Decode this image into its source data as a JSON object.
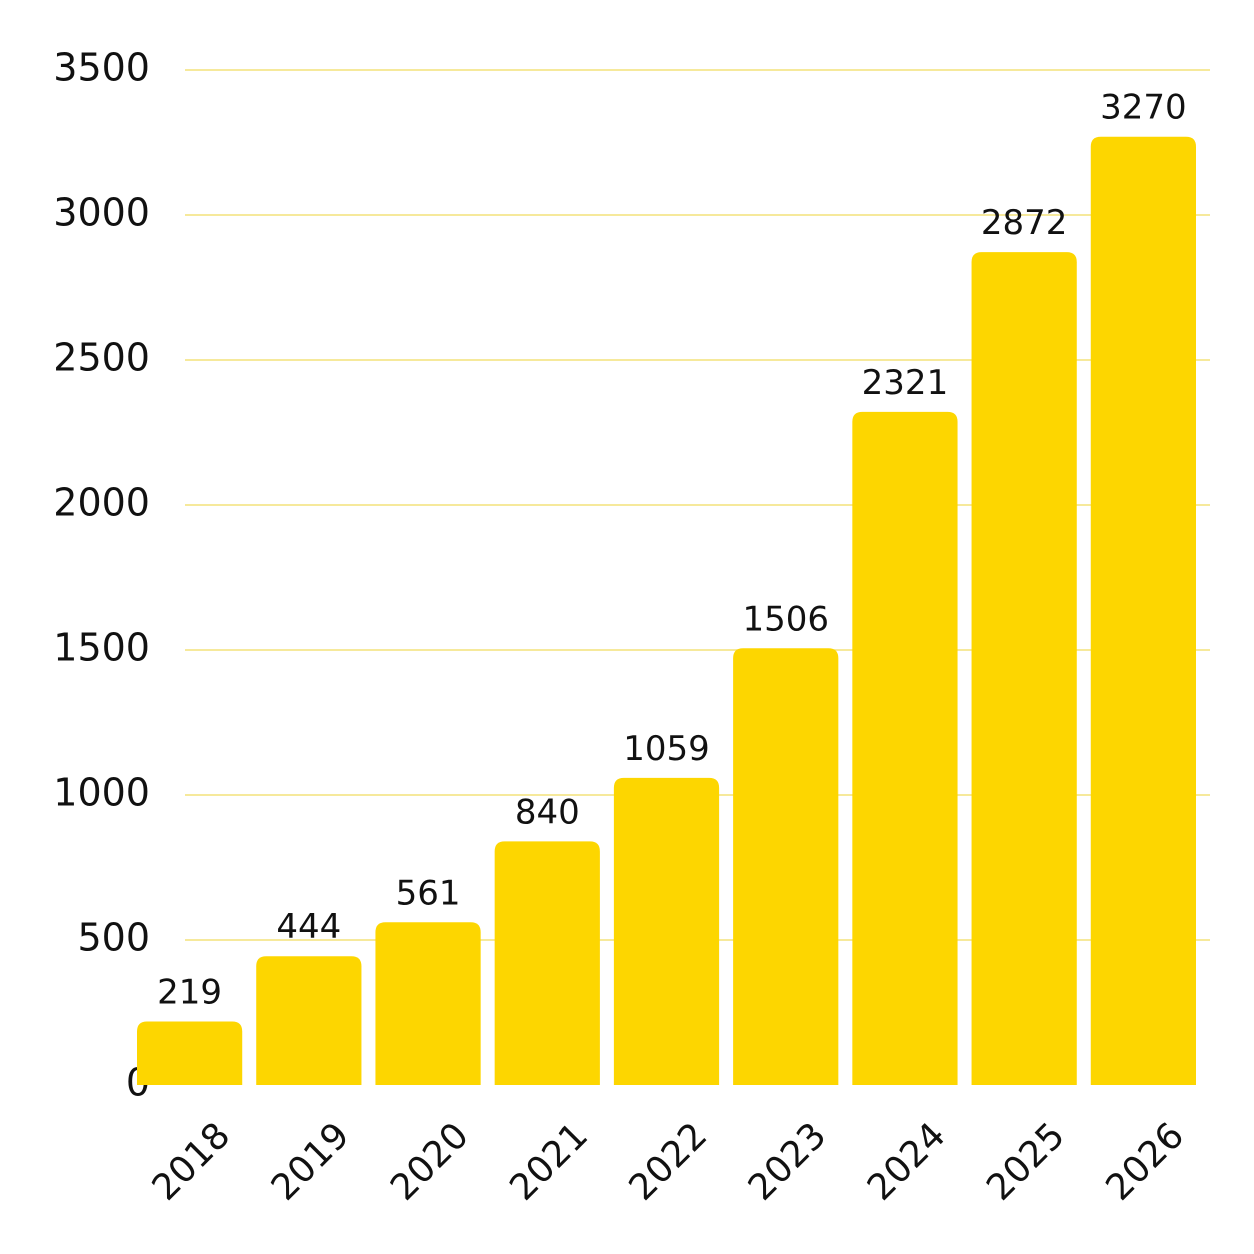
{
  "colors": {
    "bar": "#FDD600",
    "grid": "#F4E27A",
    "text": "#111111",
    "background": "#FFFFFF"
  },
  "chart_data": {
    "type": "bar",
    "categories": [
      "2018",
      "2019",
      "2020",
      "2021",
      "2022",
      "2023",
      "2024",
      "2025",
      "2026"
    ],
    "values": [
      219,
      444,
      561,
      840,
      1059,
      1506,
      2321,
      2872,
      3270
    ],
    "data_labels": [
      "219",
      "444",
      "561",
      "840",
      "1059",
      "1506",
      "2321",
      "2872",
      "3270"
    ],
    "yticks": [
      0,
      500,
      1000,
      1500,
      2000,
      2500,
      3000,
      3500
    ],
    "ytick_labels": [
      "0",
      "500",
      "1000",
      "1500",
      "2000",
      "2500",
      "3000",
      "3500"
    ],
    "ylim": [
      0,
      3500
    ],
    "grid": true,
    "legend": "none",
    "title": "",
    "xlabel": "",
    "ylabel": ""
  }
}
